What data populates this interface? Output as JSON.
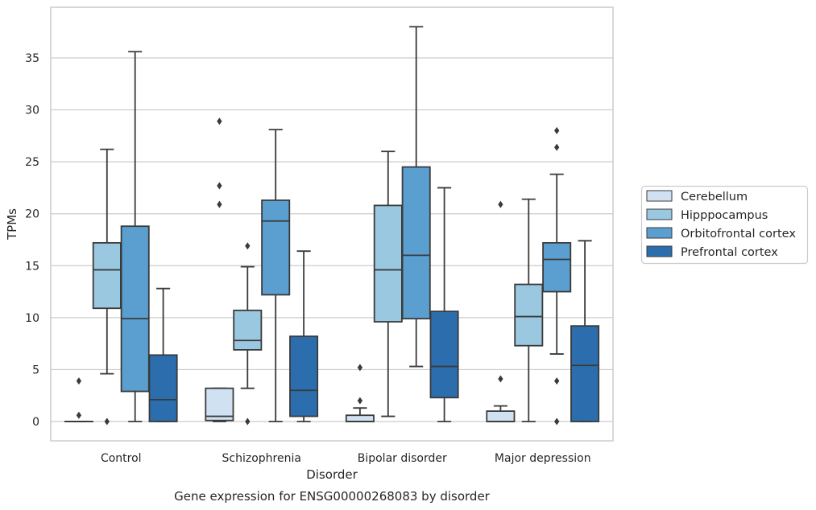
{
  "chart_data": {
    "type": "box",
    "title": "Gene expression for ENSG00000268083 by disorder",
    "xlabel": "Disorder",
    "ylabel": "TPMs",
    "ylim": [
      -1.8,
      40.0
    ],
    "yticks": [
      0,
      5,
      10,
      15,
      20,
      25,
      30,
      35
    ],
    "grid": "horizontal",
    "legend_position": "right",
    "categories": [
      "Control",
      "Schizophrenia",
      "Bipolar disorder",
      "Major depression"
    ],
    "series": [
      {
        "name": "Cerebellum",
        "color": "#d0e1f2",
        "boxes": [
          {
            "whislo": 0,
            "q1": 0,
            "med": 0,
            "q3": 0,
            "whishi": 0,
            "fliers": [
              0.6,
              3.9
            ]
          },
          {
            "whislo": 0,
            "q1": 0.1,
            "med": 0.5,
            "q3": 3.2,
            "whishi": 3.2,
            "fliers": [
              20.9,
              22.7,
              28.9
            ]
          },
          {
            "whislo": 0,
            "q1": 0,
            "med": 0,
            "q3": 0.6,
            "whishi": 1.3,
            "fliers": [
              2.0,
              5.2
            ]
          },
          {
            "whislo": 0,
            "q1": 0,
            "med": 0,
            "q3": 1.0,
            "whishi": 1.5,
            "fliers": [
              4.1,
              20.9
            ]
          }
        ]
      },
      {
        "name": "Hipppocampus",
        "color": "#9ac8e0",
        "boxes": [
          {
            "whislo": 4.6,
            "q1": 10.9,
            "med": 14.6,
            "q3": 17.2,
            "whishi": 26.2,
            "fliers": [
              0
            ]
          },
          {
            "whislo": 3.2,
            "q1": 6.9,
            "med": 7.8,
            "q3": 10.7,
            "whishi": 14.9,
            "fliers": [
              0,
              16.9
            ]
          },
          {
            "whislo": 0.5,
            "q1": 9.6,
            "med": 14.6,
            "q3": 20.8,
            "whishi": 26.0,
            "fliers": []
          },
          {
            "whislo": 0,
            "q1": 7.3,
            "med": 10.1,
            "q3": 13.2,
            "whishi": 21.4,
            "fliers": []
          }
        ]
      },
      {
        "name": "Orbitofrontal cortex",
        "color": "#5a9fcf",
        "boxes": [
          {
            "whislo": 0,
            "q1": 2.9,
            "med": 9.9,
            "q3": 18.8,
            "whishi": 35.6,
            "fliers": []
          },
          {
            "whislo": 0,
            "q1": 12.2,
            "med": 19.3,
            "q3": 21.3,
            "whishi": 28.1,
            "fliers": []
          },
          {
            "whislo": 5.3,
            "q1": 9.9,
            "med": 16.0,
            "q3": 24.5,
            "whishi": 38.0,
            "fliers": []
          },
          {
            "whislo": 6.5,
            "q1": 12.5,
            "med": 15.6,
            "q3": 17.2,
            "whishi": 23.8,
            "fliers": [
              0,
              3.9,
              26.4,
              28.0
            ]
          }
        ]
      },
      {
        "name": "Prefrontal cortex",
        "color": "#2c6ead",
        "boxes": [
          {
            "whislo": 0,
            "q1": 0,
            "med": 2.1,
            "q3": 6.4,
            "whishi": 12.8,
            "fliers": []
          },
          {
            "whislo": 0,
            "q1": 0.5,
            "med": 3.0,
            "q3": 8.2,
            "whishi": 16.4,
            "fliers": []
          },
          {
            "whislo": 0,
            "q1": 2.3,
            "med": 5.3,
            "q3": 10.6,
            "whishi": 22.5,
            "fliers": []
          },
          {
            "whislo": 0,
            "q1": 0,
            "med": 5.4,
            "q3": 9.2,
            "whishi": 17.4,
            "fliers": []
          }
        ]
      }
    ]
  }
}
